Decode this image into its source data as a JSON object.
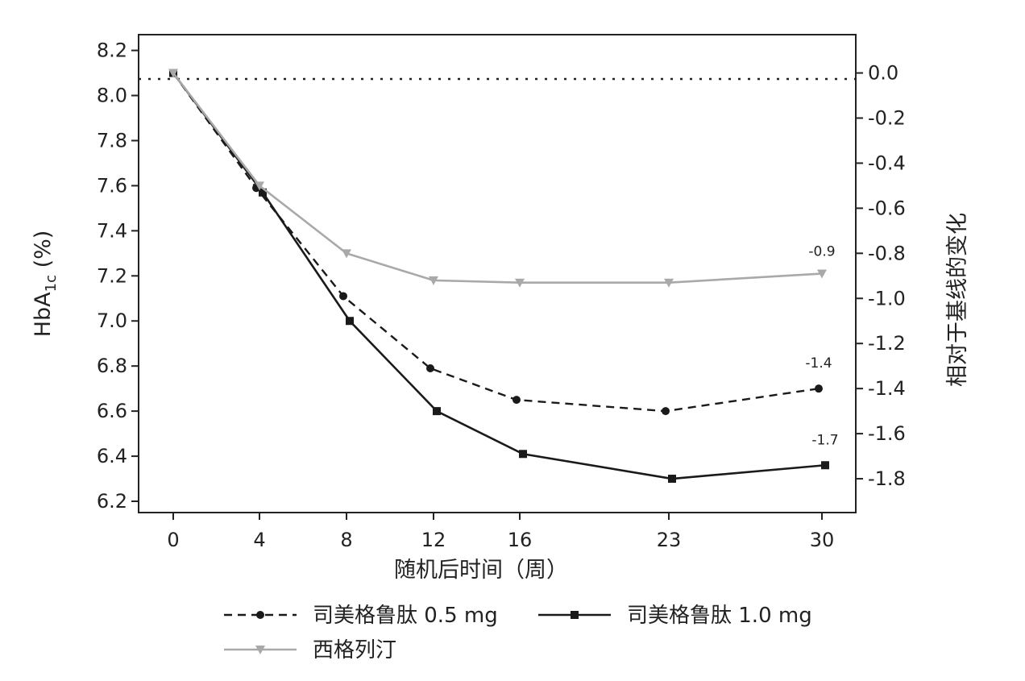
{
  "chart_data": {
    "type": "line",
    "x": [
      0,
      4,
      8,
      12,
      16,
      23,
      30
    ],
    "x_ticks": [
      "0",
      "4",
      "8",
      "12",
      "16",
      "23",
      "30"
    ],
    "xlabel": "随机后时间（周）",
    "ylabel_left": "HbA1c (%)",
    "ylabel_left_main": "HbA",
    "ylabel_left_sub": "1c",
    "ylabel_left_unit": " (%)",
    "ylabel_right": "相对于基线的变化",
    "ylim_left": [
      6.15,
      8.27
    ],
    "yticks_left": [
      "8.2",
      "8.0",
      "7.8",
      "7.6",
      "7.4",
      "7.2",
      "7.0",
      "6.8",
      "6.6",
      "6.4",
      "6.2"
    ],
    "yticks_right": [
      "0.0",
      "-0.2",
      "-0.4",
      "-0.6",
      "-0.8",
      "-1.0",
      "-1.2",
      "-1.4",
      "-1.6",
      "-1.8"
    ],
    "baseline": 8.1,
    "grid": false,
    "series": [
      {
        "name": "司美格鲁肽 0.5 mg",
        "values": [
          8.1,
          7.59,
          7.11,
          6.79,
          6.65,
          6.6,
          6.7
        ],
        "color": "#1a1a1a",
        "style": "dashed",
        "marker": "circle",
        "end_label": "-1.4"
      },
      {
        "name": "司美格鲁肽 1.0 mg",
        "values": [
          8.1,
          7.57,
          7.0,
          6.6,
          6.41,
          6.3,
          6.36
        ],
        "color": "#1a1a1a",
        "style": "solid",
        "marker": "square",
        "end_label": "-1.7"
      },
      {
        "name": "西格列汀",
        "values": [
          8.1,
          7.6,
          7.3,
          7.18,
          7.17,
          7.17,
          7.21
        ],
        "color": "#a9a9a9",
        "style": "solid",
        "marker": "triangle-down",
        "end_label": "-0.9"
      }
    ],
    "legend": {
      "placement": "bottom",
      "items": [
        "司美格鲁肽 0.5 mg",
        "司美格鲁肽 1.0 mg",
        "西格列汀"
      ]
    }
  }
}
